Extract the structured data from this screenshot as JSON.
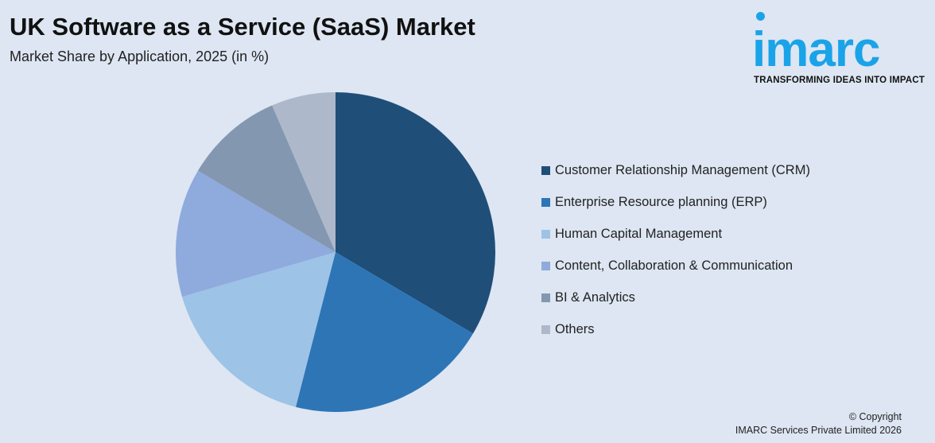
{
  "header": {
    "title": "UK Software as a Service (SaaS) Market",
    "subtitle": "Market Share by Application, 2025 (in %)"
  },
  "logo": {
    "wordmark": "imarc",
    "tagline": "TRANSFORMING IDEAS INTO IMPACT",
    "color": "#1aa3e8"
  },
  "footer": {
    "copyright": "© Copyright",
    "company": "IMARC Services Private Limited 2026"
  },
  "chart_data": {
    "type": "pie",
    "title": "UK Software as a Service (SaaS) Market",
    "subtitle": "Market Share by Application, 2025 (in %)",
    "legend_position": "right",
    "start_angle": "12 o'clock",
    "direction": "clockwise",
    "categories": [
      "Customer Relationship Management (CRM)",
      "Enterprise Resource planning (ERP)",
      "Human Capital Management",
      "Content, Collaboration & Communication",
      "BI & Analytics",
      "Others"
    ],
    "values": [
      33.5,
      20.5,
      16.5,
      13,
      10,
      6.5
    ],
    "colors": [
      "#1f4e79",
      "#2e75b6",
      "#9dc3e6",
      "#8faadc",
      "#8497b0",
      "#adb9ca"
    ]
  }
}
